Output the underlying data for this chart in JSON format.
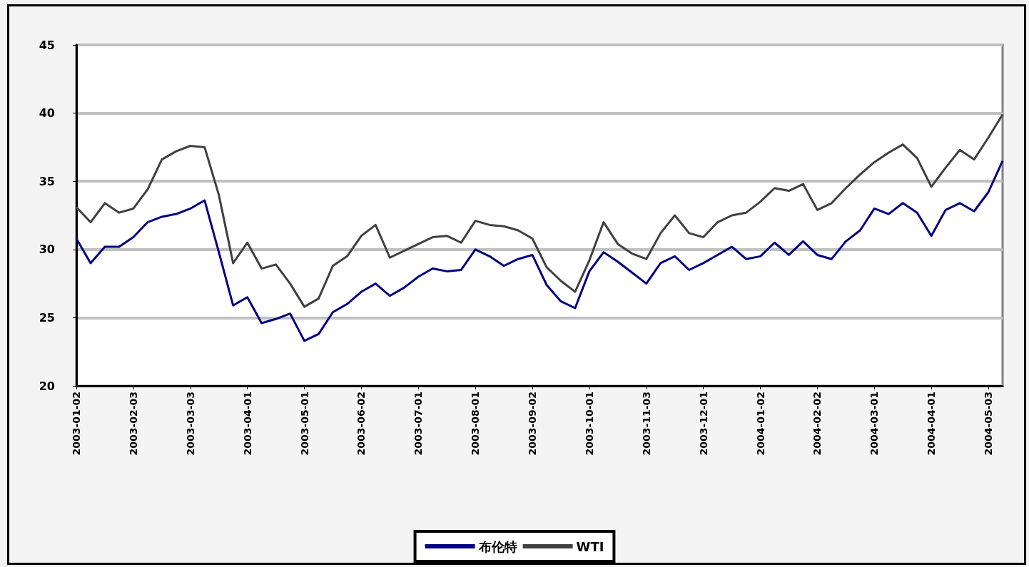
{
  "chart_data": {
    "type": "line",
    "categories": [
      "2003-01-02",
      null,
      null,
      null,
      "2003-02-03",
      null,
      null,
      null,
      "2003-03-03",
      null,
      null,
      null,
      "2003-04-01",
      null,
      null,
      null,
      "2003-05-01",
      null,
      null,
      null,
      "2003-06-02",
      null,
      null,
      null,
      "2003-07-01",
      null,
      null,
      null,
      "2003-08-01",
      null,
      null,
      null,
      "2003-09-02",
      null,
      null,
      null,
      "2003-10-01",
      null,
      null,
      null,
      "2003-11-03",
      null,
      null,
      null,
      "2003-12-01",
      null,
      null,
      null,
      "2004-01-02",
      null,
      null,
      null,
      "2004-02-02",
      null,
      null,
      null,
      "2004-03-01",
      null,
      null,
      null,
      "2004-04-01",
      null,
      null,
      null,
      "2004-05-03",
      null
    ],
    "series": [
      {
        "name": "布伦特",
        "color": "#000080",
        "values": [
          30.8,
          29.0,
          30.2,
          30.2,
          30.9,
          32.0,
          32.4,
          32.6,
          33.0,
          33.6,
          29.8,
          25.9,
          26.5,
          24.6,
          24.9,
          25.3,
          23.3,
          23.8,
          25.4,
          26.0,
          26.9,
          27.5,
          26.6,
          27.2,
          28.0,
          28.6,
          28.4,
          28.5,
          30.0,
          29.5,
          28.8,
          29.3,
          29.6,
          27.4,
          26.2,
          25.7,
          28.4,
          29.8,
          29.1,
          28.3,
          27.5,
          29.0,
          29.5,
          28.5,
          29.0,
          29.6,
          30.2,
          29.3,
          29.5,
          30.5,
          29.6,
          30.6,
          29.6,
          29.3,
          30.6,
          31.4,
          33.0,
          32.6,
          33.4,
          32.7,
          31.0,
          32.9,
          33.4,
          32.8,
          34.2,
          36.5
        ]
      },
      {
        "name": "WTI",
        "color": "#404040",
        "values": [
          33.1,
          32.0,
          33.4,
          32.7,
          33.0,
          34.4,
          36.6,
          37.2,
          37.6,
          37.5,
          34.0,
          29.0,
          30.5,
          28.6,
          28.9,
          27.5,
          25.8,
          26.4,
          28.8,
          29.5,
          31.0,
          31.8,
          29.4,
          29.9,
          30.4,
          30.9,
          31.0,
          30.5,
          32.1,
          31.8,
          31.7,
          31.4,
          30.8,
          28.7,
          27.7,
          26.9,
          29.2,
          32.0,
          30.4,
          29.7,
          29.3,
          31.2,
          32.5,
          31.2,
          30.9,
          32.0,
          32.5,
          32.7,
          33.5,
          34.5,
          34.3,
          34.8,
          32.9,
          33.4,
          34.5,
          35.5,
          36.4,
          37.1,
          37.7,
          36.7,
          34.6,
          36.0,
          37.3,
          36.6,
          38.2,
          39.9
        ]
      }
    ],
    "ylim": [
      20,
      45
    ],
    "yticks": [
      20,
      25,
      30,
      35,
      40,
      45
    ],
    "grid": "y",
    "legend": "bottom",
    "marker": "none",
    "line_style": "solid"
  }
}
